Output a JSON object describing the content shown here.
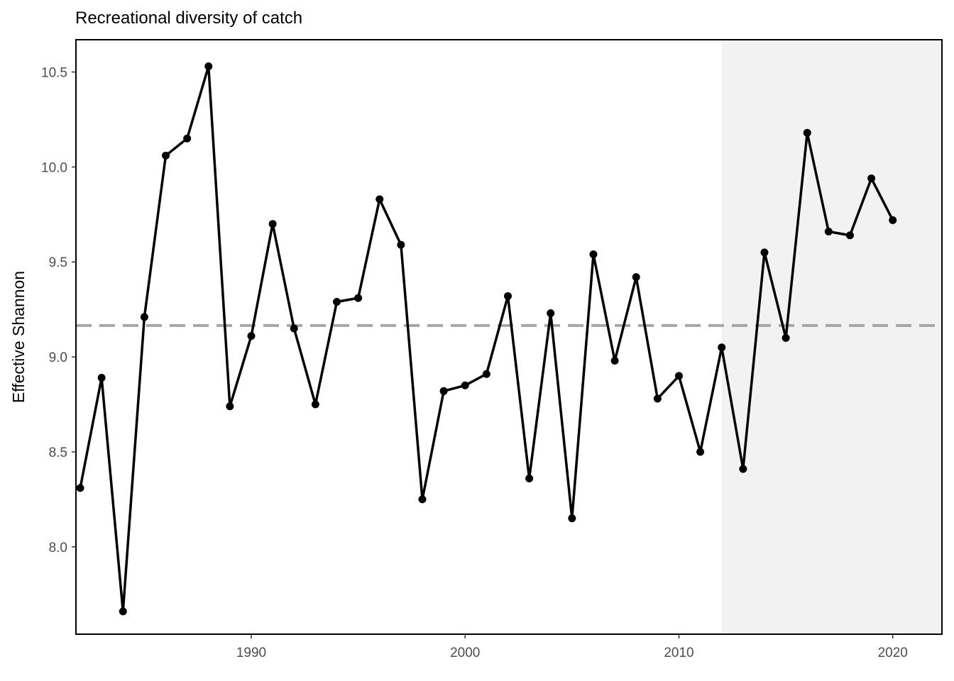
{
  "chart_data": {
    "type": "line",
    "title": "Recreational diversity of catch",
    "xlabel": "",
    "ylabel": "Effective Shannon",
    "xlim": [
      1981.8,
      2022.3
    ],
    "ylim": [
      7.54,
      10.67
    ],
    "x_ticks": [
      1990,
      2000,
      2010,
      2020
    ],
    "y_ticks": [
      8.0,
      8.5,
      9.0,
      9.5,
      10.0,
      10.5
    ],
    "y_tick_labels": [
      "8.0",
      "8.5",
      "9.0",
      "9.5",
      "10.0",
      "10.5"
    ],
    "reference_line": {
      "y": 9.165,
      "style": "dashed",
      "color": "#a6a6a6"
    },
    "shaded_region": {
      "x_start": 2012,
      "x_end": 2022.3,
      "color": "#f2f2f2"
    },
    "grid": false,
    "series": [
      {
        "color": "#000000",
        "x": [
          1982,
          1983,
          1984,
          1985,
          1986,
          1987,
          1988,
          1989,
          1990,
          1991,
          1992,
          1993,
          1994,
          1995,
          1996,
          1997,
          1998,
          1999,
          2000,
          2001,
          2002,
          2003,
          2004,
          2005,
          2006,
          2007,
          2008,
          2009,
          2010,
          2011,
          2012,
          2013,
          2014,
          2015,
          2016,
          2017,
          2018,
          2019,
          2020
        ],
        "values": [
          8.31,
          8.89,
          7.66,
          9.21,
          10.06,
          10.15,
          10.53,
          8.74,
          9.11,
          9.7,
          9.15,
          8.75,
          9.29,
          9.31,
          9.83,
          9.59,
          8.25,
          8.82,
          8.85,
          8.91,
          9.32,
          8.36,
          9.23,
          8.15,
          9.54,
          8.98,
          9.42,
          8.78,
          8.9,
          8.5,
          9.05,
          8.41,
          9.55,
          9.1,
          10.18,
          9.66,
          9.64,
          9.94,
          9.72
        ]
      }
    ]
  }
}
